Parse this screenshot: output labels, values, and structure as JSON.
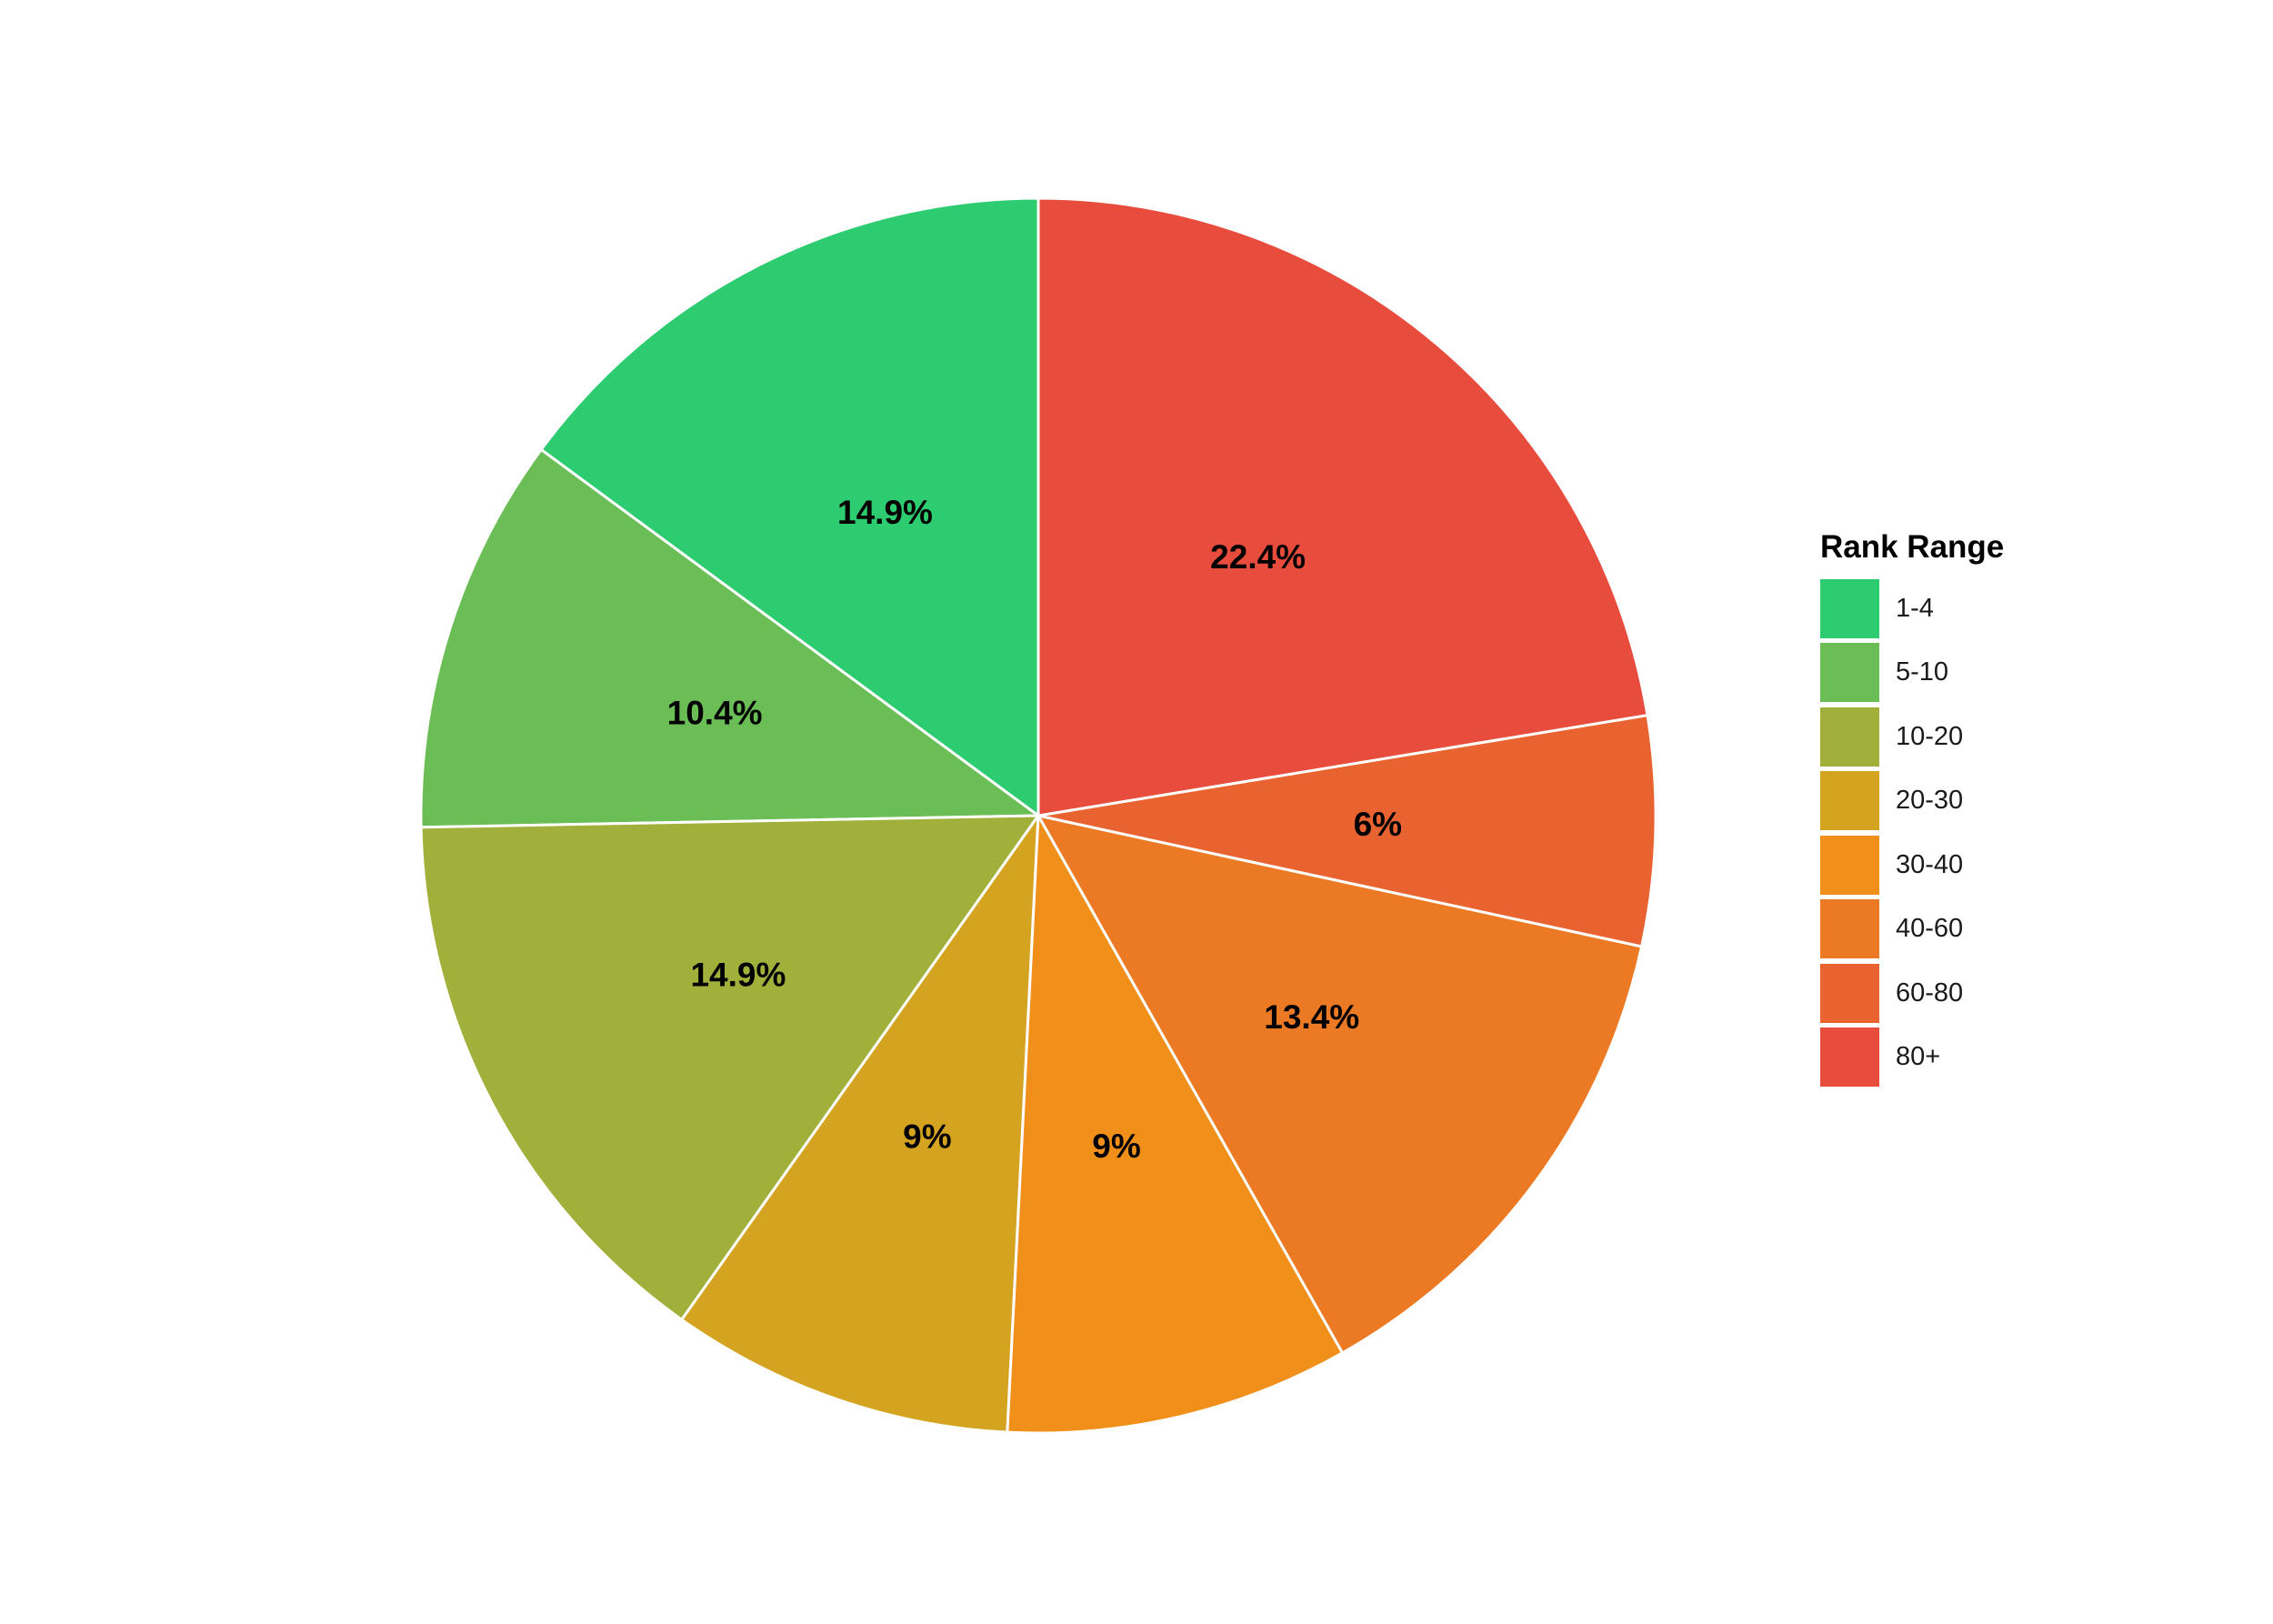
{
  "chart_data": {
    "type": "pie",
    "title": "",
    "legend": {
      "title": "Rank Range",
      "placement": "right"
    },
    "categories": [
      "1-4",
      "5-10",
      "10-20",
      "20-30",
      "30-40",
      "40-60",
      "60-80",
      "80+"
    ],
    "values": [
      14.9,
      10.4,
      14.9,
      9,
      9,
      13.4,
      6,
      22.4
    ],
    "labels": [
      "14.9%",
      "10.4%",
      "14.9%",
      "9%",
      "9%",
      "13.4%",
      "6%",
      "22.4%"
    ],
    "colors": [
      "#2ecc71",
      "#6abe55",
      "#a0b03b",
      "#d4a320",
      "#f0901a",
      "#ec7a24",
      "#e96331",
      "#e74c3c"
    ],
    "direction": "counterclockwise from top, 80+ clockwise from top"
  }
}
